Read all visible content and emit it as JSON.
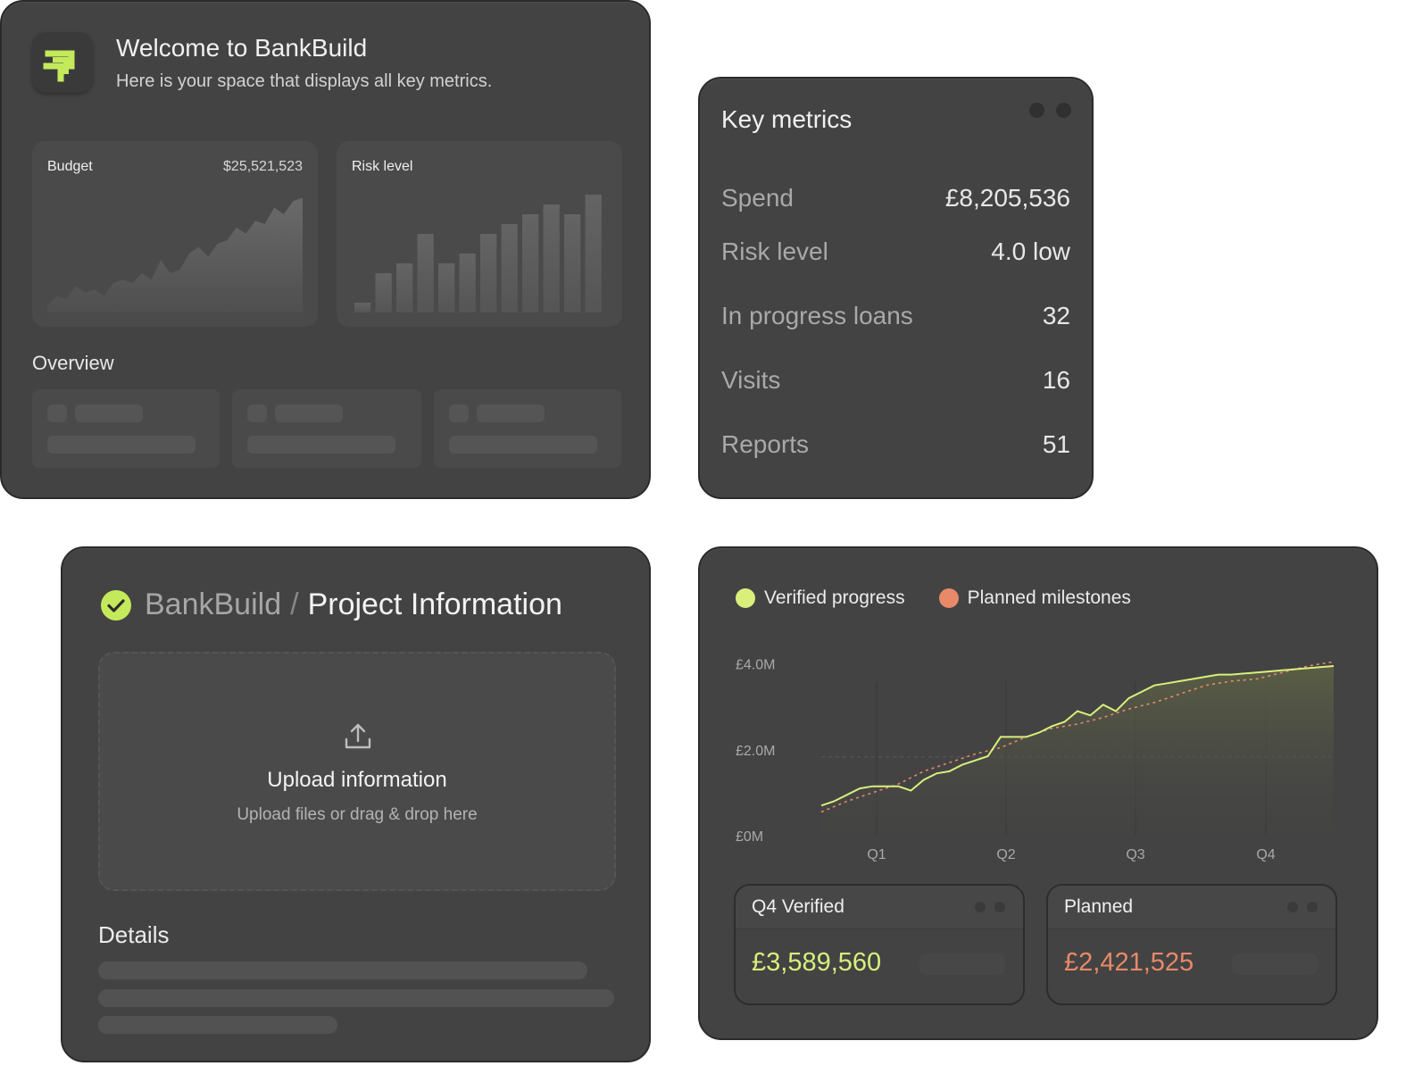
{
  "welcome": {
    "title": "Welcome to BankBuild",
    "subtitle": "Here is your space that displays all key metrics.",
    "budget": {
      "label": "Budget",
      "value": "$25,521,523"
    },
    "risk": {
      "label": "Risk level"
    },
    "overview_label": "Overview"
  },
  "key_metrics": {
    "title": "Key metrics",
    "rows": [
      {
        "label": "Spend",
        "value": "£8,205,536"
      },
      {
        "label": "Risk level",
        "value": "4.0 low"
      },
      {
        "label": "In progress loans",
        "value": "32"
      },
      {
        "label": "Visits",
        "value": "16"
      },
      {
        "label": "Reports",
        "value": "51"
      }
    ]
  },
  "project": {
    "breadcrumb_root": "BankBuild",
    "separator": "/",
    "page_title": "Project Information",
    "upload_title": "Upload information",
    "upload_hint": "Upload files or drag & drop here",
    "details_label": "Details"
  },
  "progress": {
    "legend_verified": "Verified progress",
    "legend_planned": "Planned milestones",
    "q4_verified": {
      "label": "Q4 Verified",
      "value": "£3,589,560"
    },
    "planned": {
      "label": "Planned",
      "value": "£2,421,525"
    }
  },
  "colors": {
    "lime": "#d8ef7c",
    "orange": "#e88968",
    "card": "#434343"
  },
  "chart_data": [
    {
      "type": "area",
      "title": "Budget",
      "values": [
        2,
        5,
        4,
        8,
        6,
        7,
        5,
        9,
        10,
        9,
        12,
        10,
        16,
        12,
        13,
        18,
        20,
        17,
        21,
        22,
        26,
        24,
        28,
        27,
        32,
        30,
        34,
        35
      ]
    },
    {
      "type": "bar",
      "title": "Risk level",
      "values": [
        1,
        4,
        5,
        8,
        5,
        6,
        8,
        9,
        10,
        11,
        10,
        12
      ]
    },
    {
      "type": "line",
      "categories": [
        "Q1",
        "Q2",
        "Q3",
        "Q4"
      ],
      "yticks": [
        "£0M",
        "£2.0M",
        "£4.0M"
      ],
      "ylim": [
        0,
        4.2
      ],
      "series": [
        {
          "name": "Verified progress",
          "x": [
            0,
            0.5,
            1,
            1.5,
            2,
            2.5,
            3,
            3.5,
            4,
            4.5,
            5,
            5.5,
            6,
            6.5,
            7,
            7.5,
            8,
            8.5,
            9,
            9.5,
            10,
            10.5,
            11,
            11.5,
            12,
            12.5,
            13,
            13.5,
            14,
            14.5,
            15,
            15.5,
            16,
            17,
            18,
            19,
            20
          ],
          "y": [
            0.7,
            0.8,
            0.95,
            1.1,
            1.15,
            1.15,
            1.15,
            1.05,
            1.3,
            1.45,
            1.5,
            1.65,
            1.75,
            1.85,
            2.3,
            2.3,
            2.3,
            2.4,
            2.55,
            2.65,
            2.9,
            2.8,
            3.05,
            2.9,
            3.2,
            3.35,
            3.5,
            3.55,
            3.6,
            3.65,
            3.7,
            3.75,
            3.75,
            3.8,
            3.85,
            3.9,
            3.95
          ]
        },
        {
          "name": "Planned milestones",
          "x": [
            0,
            1,
            2,
            3,
            4,
            5,
            6,
            7,
            8,
            9,
            10,
            11,
            12,
            13,
            14,
            15,
            16,
            17,
            18,
            19,
            20
          ],
          "y": [
            0.55,
            0.8,
            1.0,
            1.2,
            1.5,
            1.7,
            1.9,
            2.05,
            2.3,
            2.5,
            2.6,
            2.75,
            2.95,
            3.1,
            3.3,
            3.5,
            3.6,
            3.65,
            3.8,
            3.95,
            4.05
          ]
        }
      ]
    }
  ]
}
